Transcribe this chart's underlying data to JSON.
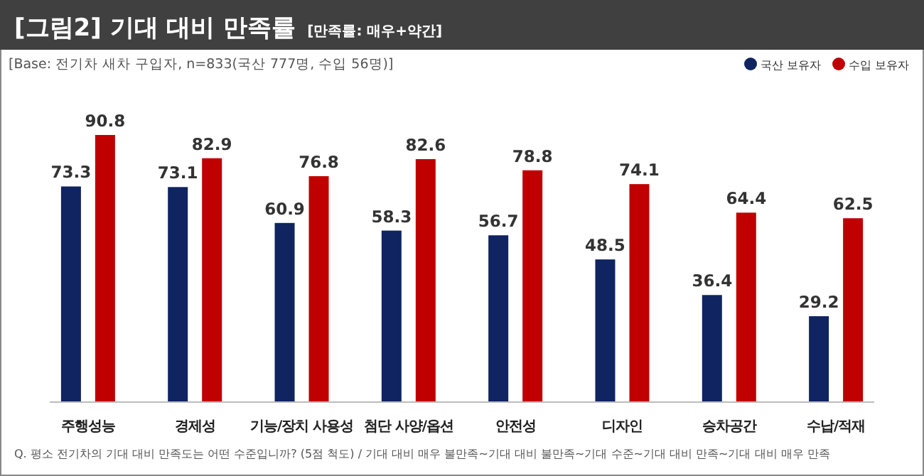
{
  "chart_data": {
    "type": "bar",
    "title": "[그림2] 기대 대비 만족률",
    "subtitle": "[만족률: 매우+약간]",
    "annotations": [
      "[Base: 전기차 새차 구입자, n=833(국산 777명, 수입 56명)]",
      "Q. 평소 전기차의 기대 대비 만족도는 어떤 수준입니까? (5점 척도) / 기대 대비 매우 불만족~기대 대비 불만족~기대 수준~기대 대비 만족~기대 대비 매우 만족"
    ],
    "categories": [
      "주행성능",
      "경제성",
      "기능/장치 사용성",
      "첨단 사양/옵션",
      "안전성",
      "디자인",
      "승차공간",
      "수납/적재"
    ],
    "series": [
      {
        "name": "국산 보유자",
        "color": "#0f2461",
        "values": [
          73.3,
          73.1,
          60.9,
          58.3,
          56.7,
          48.5,
          36.4,
          29.2
        ]
      },
      {
        "name": "수입 보유자",
        "color": "#c00000",
        "values": [
          90.8,
          82.9,
          76.8,
          82.6,
          78.8,
          74.1,
          64.4,
          62.5
        ]
      }
    ],
    "data_labels": true,
    "legend": "top right",
    "grid": false
  }
}
